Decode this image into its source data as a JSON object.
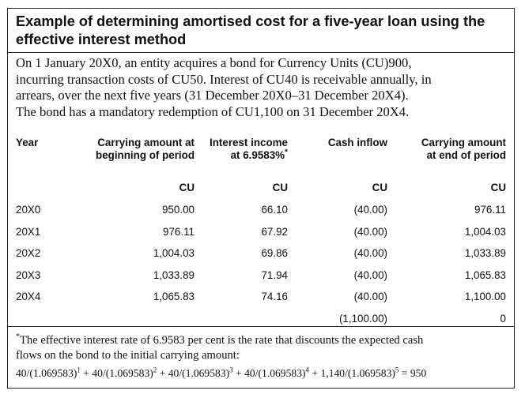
{
  "title": "Example of determining amortised cost for a five-year loan using the effective interest method",
  "intro": {
    "line1": "On 1 January 20X0, an entity acquires a bond for Currency Units (CU)900,",
    "line2": "incurring transaction costs of CU50. Interest of CU40 is receivable annually, in",
    "line3": "arrears, over the next five years (31 December 20X0–31 December 20X4).",
    "line4": "The bond has a mandatory redemption of CU1,100 on 31 December 20X4."
  },
  "table": {
    "headers": {
      "year": "Year",
      "carry_begin_1": "Carrying amount at",
      "carry_begin_2": "beginning of period",
      "interest_1": "Interest income",
      "interest_2": "at 6.9583%",
      "interest_marker": "*",
      "cash": "Cash inflow",
      "carry_end_1": "Carrying amount",
      "carry_end_2": "at end of period"
    },
    "units": [
      "CU",
      "CU",
      "CU",
      "CU"
    ],
    "rows": [
      {
        "year": "20X0",
        "begin": "950.00",
        "interest": "66.10",
        "cash": "(40.00)",
        "end": "976.11"
      },
      {
        "year": "20X1",
        "begin": "976.11",
        "interest": "67.92",
        "cash": "(40.00)",
        "end": "1,004.03"
      },
      {
        "year": "20X2",
        "begin": "1,004.03",
        "interest": "69.86",
        "cash": "(40.00)",
        "end": "1,033.89"
      },
      {
        "year": "20X3",
        "begin": "1,033.89",
        "interest": "71.94",
        "cash": "(40.00)",
        "end": "1,065.83"
      },
      {
        "year": "20X4",
        "begin": "1,065.83",
        "interest": "74.16",
        "cash": "(40.00)",
        "end": "1,100.00"
      },
      {
        "year": "",
        "begin": "",
        "interest": "",
        "cash": "(1,100.00)",
        "end": "0"
      }
    ]
  },
  "footnote": {
    "marker": "*",
    "line1": "The effective interest rate of 6.9583 per cent is the rate that discounts the expected cash",
    "line2": "flows on the bond to the initial carrying amount:",
    "formula": [
      {
        "num": "40/(1.069583)",
        "exp": "1",
        "sep": " + "
      },
      {
        "num": "40/(1.069583)",
        "exp": "2",
        "sep": " + "
      },
      {
        "num": "40/(1.069583)",
        "exp": "3",
        "sep": " + "
      },
      {
        "num": "40/(1.069583)",
        "exp": "4",
        "sep": " + "
      },
      {
        "num": "1,140/(1.069583)",
        "exp": "5",
        "sep": " = 950"
      }
    ]
  }
}
